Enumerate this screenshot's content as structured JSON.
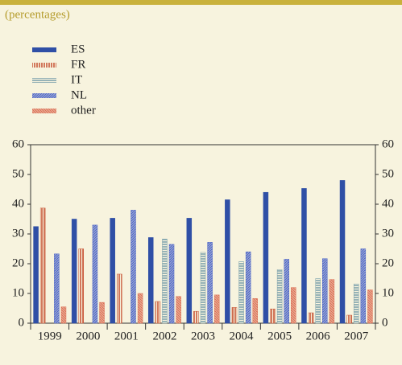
{
  "chart_data": {
    "type": "bar",
    "subtitle": "(percentages)",
    "categories": [
      "1999",
      "2000",
      "2001",
      "2002",
      "2003",
      "2004",
      "2005",
      "2006",
      "2007"
    ],
    "series": [
      {
        "name": "ES",
        "color": "#2f4fa6",
        "pattern": "solid",
        "values": [
          32.5,
          35,
          35.3,
          28.8,
          35.3,
          41.5,
          44,
          45.3,
          48
        ]
      },
      {
        "name": "FR",
        "color": "#c95a3c",
        "pattern": "vertical",
        "values": [
          38.7,
          25,
          16.5,
          7.3,
          4,
          5.3,
          4.8,
          3.5,
          2.7
        ]
      },
      {
        "name": "IT",
        "color": "#7fa3ad",
        "pattern": "horizontal",
        "values": [
          null,
          null,
          null,
          28.3,
          23.8,
          20.7,
          18,
          15,
          13.2
        ]
      },
      {
        "name": "NL",
        "color": "#5068c8",
        "pattern": "diagonal",
        "values": [
          23.3,
          33,
          38,
          26.5,
          27.2,
          24,
          21.5,
          21.7,
          25
        ]
      },
      {
        "name": "other",
        "color": "#dc7258",
        "pattern": "diagonal-back",
        "values": [
          5.5,
          7,
          10,
          9,
          9.5,
          8.3,
          12,
          14.7,
          11.2
        ]
      }
    ],
    "ylim": [
      0,
      60
    ],
    "yticks": [
      0,
      10,
      20,
      30,
      40,
      50,
      60
    ],
    "y2ticks": [
      0,
      10,
      20,
      30,
      40,
      50,
      60
    ]
  }
}
